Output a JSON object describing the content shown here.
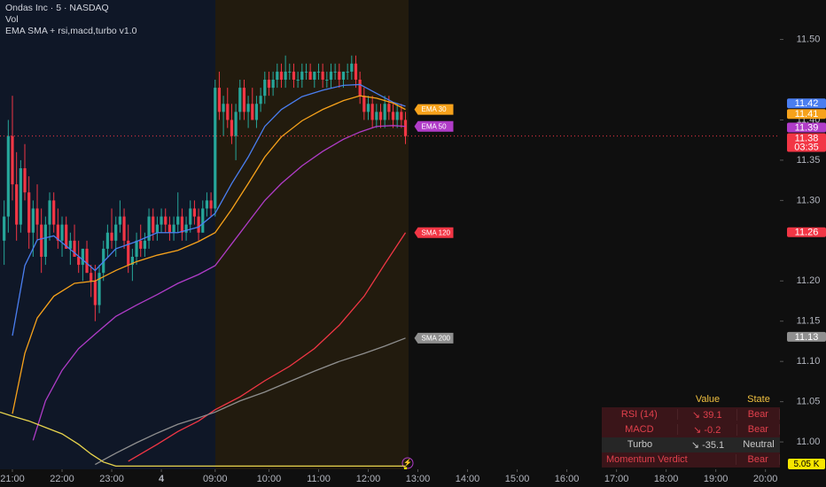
{
  "chart_data": {
    "type": "candlestick",
    "title": "Ondas Inc · 5 · NASDAQ",
    "indicators": [
      "Vol",
      "EMA SMA + rsi,macd,turbo v1.0"
    ],
    "up_color": "#26a69a",
    "down_color": "#f23645",
    "xlim": [
      -3,
      185.5
    ],
    "xticks": [
      {
        "value": 0,
        "label": "21:00"
      },
      {
        "value": 12,
        "label": "22:00"
      },
      {
        "value": 24,
        "label": "23:00"
      },
      {
        "value": 36,
        "label": "4"
      },
      {
        "value": 49,
        "label": "09:00"
      },
      {
        "value": 62,
        "label": "10:00"
      },
      {
        "value": 74,
        "label": "11:00"
      },
      {
        "value": 86,
        "label": "12:00"
      },
      {
        "value": 98,
        "label": "13:00"
      },
      {
        "value": 110,
        "label": "14:00"
      },
      {
        "value": 122,
        "label": "15:00"
      },
      {
        "value": 134,
        "label": "16:00"
      },
      {
        "value": 146,
        "label": "17:00"
      },
      {
        "value": 158,
        "label": "18:00"
      },
      {
        "value": 170,
        "label": "19:00"
      },
      {
        "value": 182,
        "label": "20:00"
      }
    ],
    "ylim": [
      10.966,
      11.549
    ],
    "yticks": [
      {
        "value": 11,
        "label": "11.00"
      },
      11.05,
      {
        "value": 11.1,
        "label": "11.10"
      },
      11.15,
      {
        "value": 11.2,
        "label": "11.20"
      },
      {
        "value": 11.3,
        "label": "11.30"
      },
      11.35,
      {
        "value": 11.4,
        "label": "11.40"
      },
      {
        "value": 11.5,
        "label": "11.50"
      }
    ],
    "x": [
      -2,
      -1,
      0,
      1,
      2,
      3,
      4,
      5,
      6,
      7,
      8,
      9,
      10,
      11,
      12,
      13,
      14,
      15,
      16,
      17,
      18,
      19,
      20,
      21,
      22,
      23,
      24,
      25,
      26,
      27,
      28,
      29,
      30,
      31,
      32,
      33,
      34,
      35,
      36,
      37,
      38,
      39,
      40,
      41,
      42,
      43,
      44,
      45,
      46,
      47,
      48,
      49,
      50,
      51,
      52,
      53,
      54,
      55,
      56,
      57,
      58,
      59,
      60,
      61,
      62,
      63,
      64,
      65,
      66,
      67,
      68,
      69,
      70,
      71,
      72,
      73,
      74,
      75,
      76,
      77,
      78,
      79,
      80,
      81,
      82,
      83,
      84,
      85,
      86,
      87,
      88,
      89,
      90,
      91,
      92,
      93,
      94,
      95
    ],
    "ohlc": [
      [
        11.25,
        11.3,
        11.22,
        11.28
      ],
      [
        11.28,
        11.4,
        11.26,
        11.38
      ],
      [
        11.38,
        11.43,
        11.3,
        11.32
      ],
      [
        11.32,
        11.36,
        11.25,
        11.27
      ],
      [
        11.27,
        11.35,
        11.26,
        11.34
      ],
      [
        11.34,
        11.37,
        11.3,
        11.31
      ],
      [
        11.31,
        11.33,
        11.24,
        11.26
      ],
      [
        11.26,
        11.3,
        11.23,
        11.29
      ],
      [
        11.29,
        11.32,
        11.25,
        11.27
      ],
      [
        11.27,
        11.29,
        11.21,
        11.23
      ],
      [
        11.23,
        11.28,
        11.22,
        11.27
      ],
      [
        11.27,
        11.31,
        11.25,
        11.3
      ],
      [
        11.3,
        11.31,
        11.26,
        11.27
      ],
      [
        11.27,
        11.29,
        11.24,
        11.25
      ],
      [
        11.25,
        11.28,
        11.23,
        11.27
      ],
      [
        11.27,
        11.28,
        11.24,
        11.24
      ],
      [
        11.24,
        11.26,
        11.22,
        11.25
      ],
      [
        11.25,
        11.27,
        11.23,
        11.23
      ],
      [
        11.23,
        11.25,
        11.21,
        11.22
      ],
      [
        11.22,
        11.24,
        11.2,
        11.24
      ],
      [
        11.24,
        11.25,
        11.21,
        11.21
      ],
      [
        11.21,
        11.22,
        11.18,
        11.2
      ],
      [
        11.2,
        11.22,
        11.15,
        11.17
      ],
      [
        11.17,
        11.22,
        11.16,
        11.21
      ],
      [
        11.21,
        11.25,
        11.2,
        11.24
      ],
      [
        11.24,
        11.27,
        11.23,
        11.26
      ],
      [
        11.26,
        11.29,
        11.24,
        11.25
      ],
      [
        11.25,
        11.28,
        11.23,
        11.27
      ],
      [
        11.27,
        11.3,
        11.26,
        11.28
      ],
      [
        11.28,
        11.29,
        11.24,
        11.25
      ],
      [
        11.25,
        11.27,
        11.21,
        11.22
      ],
      [
        11.22,
        11.24,
        11.2,
        11.23
      ],
      [
        11.23,
        11.26,
        11.22,
        11.25
      ],
      [
        11.25,
        11.27,
        11.23,
        11.24
      ],
      [
        11.24,
        11.26,
        11.23,
        11.25
      ],
      [
        11.25,
        11.29,
        11.24,
        11.28
      ],
      [
        11.28,
        11.29,
        11.25,
        11.26
      ],
      [
        11.26,
        11.28,
        11.25,
        11.27
      ],
      [
        11.27,
        11.29,
        11.26,
        11.28
      ],
      [
        11.28,
        11.29,
        11.26,
        11.27
      ],
      [
        11.27,
        11.28,
        11.25,
        11.26
      ],
      [
        11.26,
        11.28,
        11.25,
        11.27
      ],
      [
        11.27,
        11.31,
        11.26,
        11.28
      ],
      [
        11.28,
        11.29,
        11.25,
        11.26
      ],
      [
        11.26,
        11.28,
        11.25,
        11.27
      ],
      [
        11.27,
        11.3,
        11.26,
        11.29
      ],
      [
        11.29,
        11.3,
        11.27,
        11.28
      ],
      [
        11.28,
        11.29,
        11.25,
        11.26
      ],
      [
        11.26,
        11.3,
        11.26,
        11.29
      ],
      [
        11.29,
        11.31,
        11.28,
        11.3
      ],
      [
        11.3,
        11.31,
        11.28,
        11.29
      ],
      [
        11.29,
        11.45,
        11.28,
        11.44
      ],
      [
        11.44,
        11.46,
        11.4,
        11.41
      ],
      [
        11.41,
        11.43,
        11.38,
        11.42
      ],
      [
        11.42,
        11.44,
        11.39,
        11.4
      ],
      [
        11.4,
        11.42,
        11.37,
        11.38
      ],
      [
        11.38,
        11.42,
        11.35,
        11.41
      ],
      [
        11.41,
        11.45,
        11.4,
        11.44
      ],
      [
        11.44,
        11.45,
        11.4,
        11.41
      ],
      [
        11.41,
        11.43,
        11.39,
        11.42
      ],
      [
        11.42,
        11.44,
        11.4,
        11.4
      ],
      [
        11.4,
        11.43,
        11.39,
        11.42
      ],
      [
        11.42,
        11.44,
        11.41,
        11.43
      ],
      [
        11.43,
        11.46,
        11.42,
        11.45
      ],
      [
        11.45,
        11.46,
        11.43,
        11.44
      ],
      [
        11.44,
        11.46,
        11.43,
        11.45
      ],
      [
        11.45,
        11.47,
        11.44,
        11.46
      ],
      [
        11.46,
        11.47,
        11.44,
        11.45
      ],
      [
        11.45,
        11.48,
        11.44,
        11.46
      ],
      [
        11.46,
        11.47,
        11.45,
        11.46
      ],
      [
        11.46,
        11.47,
        11.44,
        11.45
      ],
      [
        11.45,
        11.46,
        11.44,
        11.45
      ],
      [
        11.45,
        11.47,
        11.44,
        11.46
      ],
      [
        11.46,
        11.47,
        11.45,
        11.46
      ],
      [
        11.46,
        11.47,
        11.45,
        11.45
      ],
      [
        11.45,
        11.46,
        11.44,
        11.46
      ],
      [
        11.46,
        11.47,
        11.45,
        11.46
      ],
      [
        11.46,
        11.47,
        11.44,
        11.45
      ],
      [
        11.45,
        11.46,
        11.44,
        11.45
      ],
      [
        11.45,
        11.47,
        11.44,
        11.46
      ],
      [
        11.46,
        11.47,
        11.45,
        11.46
      ],
      [
        11.46,
        11.47,
        11.44,
        11.45
      ],
      [
        11.45,
        11.46,
        11.44,
        11.46
      ],
      [
        11.46,
        11.47,
        11.45,
        11.46
      ],
      [
        11.46,
        11.48,
        11.45,
        11.47
      ],
      [
        11.47,
        11.48,
        11.44,
        11.45
      ],
      [
        11.45,
        11.46,
        11.42,
        11.43
      ],
      [
        11.43,
        11.44,
        11.4,
        11.41
      ],
      [
        11.41,
        11.43,
        11.4,
        11.42
      ],
      [
        11.42,
        11.43,
        11.39,
        11.4
      ],
      [
        11.4,
        11.42,
        11.39,
        11.41
      ],
      [
        11.41,
        11.42,
        11.39,
        11.4
      ],
      [
        11.4,
        11.43,
        11.39,
        11.42
      ],
      [
        11.42,
        11.43,
        11.4,
        11.41
      ],
      [
        11.41,
        11.42,
        11.39,
        11.4
      ],
      [
        11.4,
        11.42,
        11.39,
        11.41
      ],
      [
        11.41,
        11.42,
        11.39,
        11.4
      ],
      [
        11.4,
        11.41,
        11.37,
        11.38
      ]
    ],
    "last_price": 11.38,
    "countdown": "03:35",
    "lines": [
      {
        "color": "#4a7ef0",
        "last": 11.42,
        "x": [
          0,
          3,
          6,
          10,
          15,
          20,
          25,
          30,
          35,
          40,
          45,
          49,
          53,
          57,
          61,
          65,
          70,
          75,
          80,
          84,
          88,
          92,
          95
        ],
        "values": [
          11.132,
          11.219,
          11.251,
          11.256,
          11.235,
          11.213,
          11.24,
          11.249,
          11.26,
          11.26,
          11.267,
          11.284,
          11.321,
          11.354,
          11.392,
          11.413,
          11.429,
          11.437,
          11.443,
          11.444,
          11.433,
          11.422,
          11.417
        ]
      },
      {
        "name": "EMA 30",
        "color": "#f7a21b",
        "last": 11.41,
        "x": [
          0,
          3,
          6,
          10,
          15,
          20,
          25,
          30,
          35,
          40,
          45,
          49,
          53,
          57,
          61,
          65,
          70,
          75,
          80,
          84,
          88,
          92,
          95
        ],
        "values": [
          11.035,
          11.11,
          11.154,
          11.181,
          11.197,
          11.2,
          11.213,
          11.224,
          11.232,
          11.238,
          11.249,
          11.26,
          11.289,
          11.321,
          11.354,
          11.379,
          11.399,
          11.413,
          11.424,
          11.43,
          11.427,
          11.421,
          11.413
        ]
      },
      {
        "name": "EMA 50",
        "color": "#b03cc8",
        "last": 11.39,
        "x": [
          5,
          8,
          12,
          16,
          20,
          25,
          30,
          35,
          40,
          45,
          49,
          53,
          57,
          61,
          65,
          70,
          75,
          80,
          84,
          88,
          92,
          95
        ],
        "values": [
          11.002,
          11.051,
          11.089,
          11.116,
          11.134,
          11.156,
          11.17,
          11.183,
          11.197,
          11.208,
          11.219,
          11.246,
          11.273,
          11.3,
          11.321,
          11.343,
          11.361,
          11.376,
          11.385,
          11.392,
          11.393,
          11.392
        ]
      },
      {
        "name": "SMA 120",
        "color": "#f23645",
        "last": 11.26,
        "x": [
          28,
          35,
          40,
          45,
          49,
          55,
          61,
          67,
          73,
          79,
          85,
          90,
          95
        ],
        "values": [
          10.976,
          10.997,
          11.013,
          11.026,
          11.04,
          11.056,
          11.076,
          11.094,
          11.116,
          11.145,
          11.181,
          11.221,
          11.26
        ]
      },
      {
        "name": "SMA 200",
        "color": "#8f8f8f",
        "last": 11.13,
        "x": [
          20,
          25,
          30,
          35,
          40,
          45,
          49,
          55,
          61,
          67,
          73,
          79,
          85,
          90,
          95
        ],
        "values": [
          10.972,
          10.986,
          10.999,
          11.011,
          11.022,
          11.03,
          11.037,
          11.051,
          11.062,
          11.075,
          11.088,
          11.1,
          11.11,
          11.119,
          11.129
        ]
      },
      {
        "color": "#e8d44d",
        "x": [
          -3,
          0,
          4,
          8,
          12,
          16,
          19,
          22,
          25,
          95
        ],
        "values": [
          11.037,
          11.032,
          11.026,
          11.018,
          11.01,
          10.997,
          10.985,
          10.975,
          10.97,
          10.97
        ]
      }
    ],
    "volume": {
      "color": "#f7e600",
      "values": [
        5050
      ],
      "value_labels": [
        "5.05 K"
      ]
    }
  },
  "table": {
    "header": [
      "Value",
      "State"
    ],
    "rows": [
      [
        "RSI (14)",
        "↘ 39.1",
        "Bear"
      ],
      [
        "MACD",
        "↘ -0.2",
        "Bear"
      ],
      [
        "Turbo",
        "↘ -35.1",
        "Neutral"
      ],
      [
        "Momentum Verdict",
        "Bear"
      ]
    ]
  }
}
